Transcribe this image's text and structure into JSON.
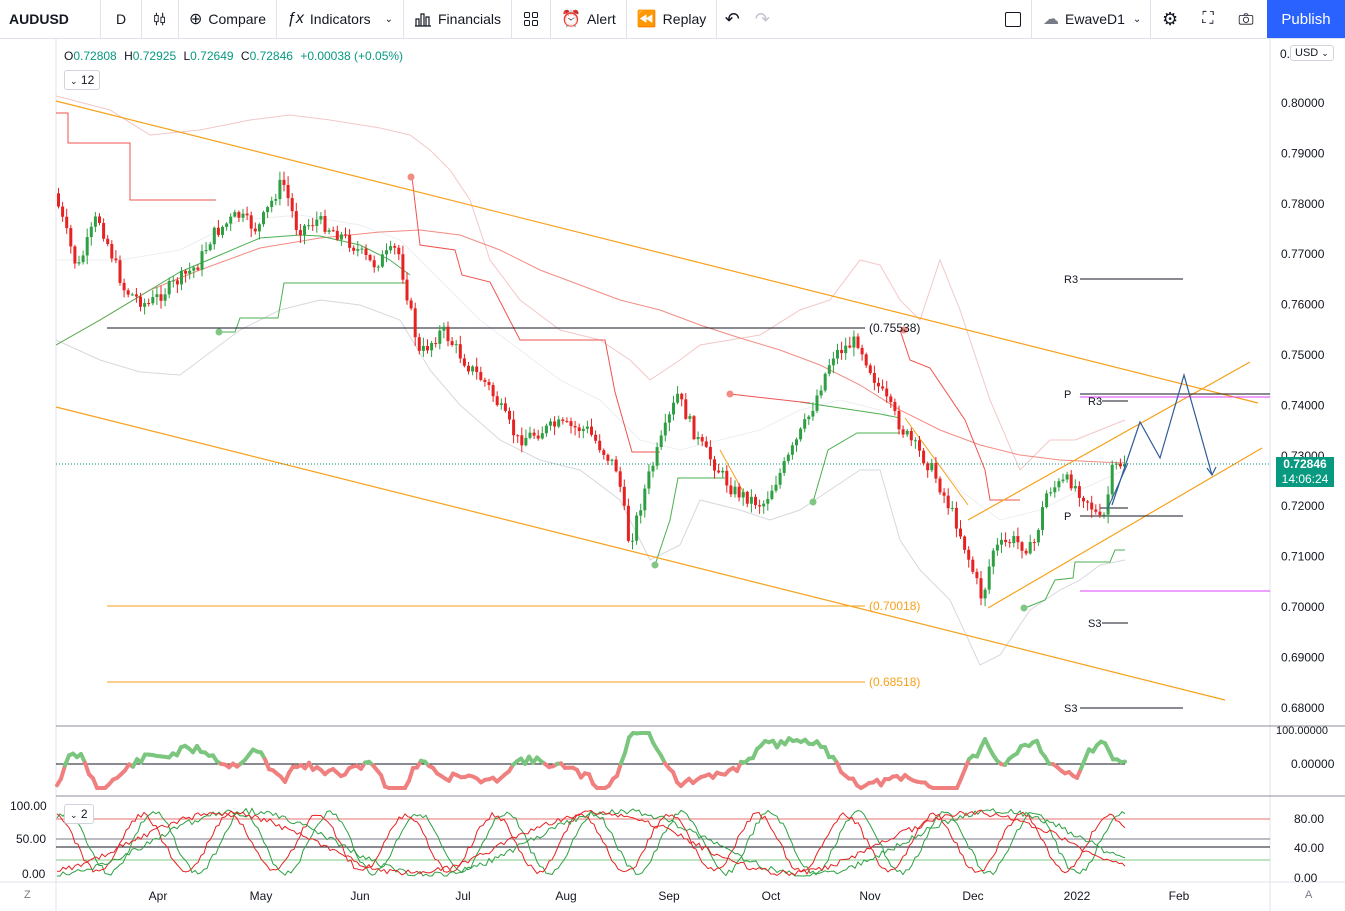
{
  "toolbar": {
    "symbol": "AUDUSD",
    "interval": "D",
    "compare": "Compare",
    "indicators": "Indicators",
    "financials": "Financials",
    "alert": "Alert",
    "replay": "Replay",
    "layout_name": "EwaveD1",
    "publish": "Publish"
  },
  "legend": {
    "o_label": "O",
    "o": "0.72808",
    "h_label": "H",
    "h": "0.72925",
    "l_label": "L",
    "l": "0.72649",
    "c_label": "C",
    "c": "0.72846",
    "change": "+0.00038 (+0.05%)",
    "pane_collapse": "12",
    "osc_collapse": "2"
  },
  "price_axis": {
    "currency": "USD",
    "top_clip": "0.",
    "ticks": [
      "0.80000",
      "0.79000",
      "0.78000",
      "0.77000",
      "0.76000",
      "0.75000",
      "0.74000",
      "0.73000",
      "0.72000",
      "0.71000",
      "0.70000",
      "0.69000",
      "0.68000"
    ],
    "last_price": "0.72846",
    "countdown": "14:06:24"
  },
  "osc1_axis": {
    "ticks": [
      "100.00000",
      "0.00000"
    ]
  },
  "osc2_axis": {
    "left_ticks": [
      "100.00",
      "50.00",
      "0.00"
    ],
    "right_ticks": [
      "80.00",
      "40.00",
      "0.00"
    ]
  },
  "time_axis": {
    "labels": [
      "Apr",
      "May",
      "Jun",
      "Jul",
      "Aug",
      "Sep",
      "Oct",
      "Nov",
      "Dec",
      "2022",
      "Feb"
    ]
  },
  "annotations": {
    "fib_high": "(0.75538)",
    "fib_mid": "(0.70018)",
    "fib_low": "(0.68518)",
    "pivot_r3_a": "R3",
    "pivot_p_a": "P",
    "pivot_r3_b": "R3",
    "pivot_p_b": "P",
    "pivot_s3_a": "S3",
    "pivot_s3_b": "S3"
  },
  "corners": {
    "left": "Z",
    "right": "A"
  },
  "colors": {
    "up": "#26a69a",
    "up_candle": "#2ea043",
    "down": "#e62222",
    "channel": "#f7a11a",
    "wave": "#2e5c99",
    "publish": "#2962ff",
    "last_price": "#089981"
  }
}
